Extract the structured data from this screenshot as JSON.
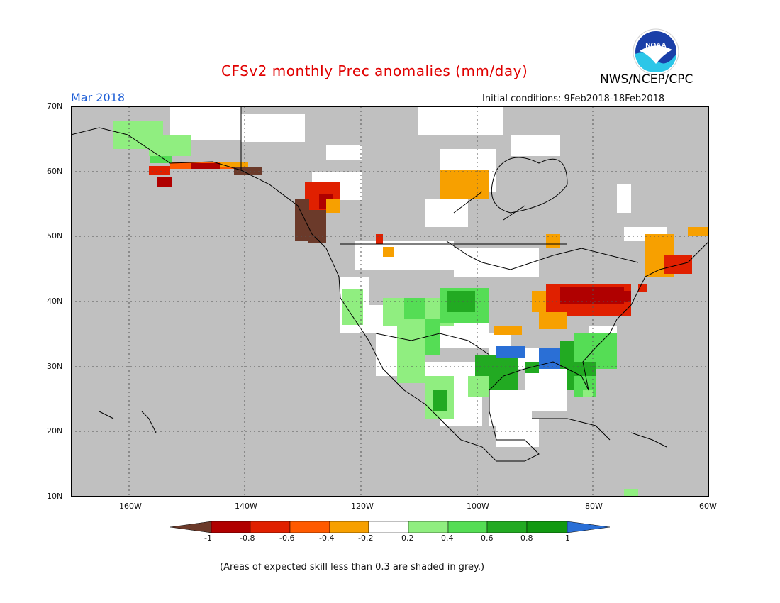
{
  "header": {
    "title": "CFSv2 monthly Prec anomalies (mm/day)",
    "agency": "NWS/NCEP/CPC",
    "valid_month": "Mar 2018",
    "initial_conditions": "Initial conditions: 9Feb2018-18Feb2018",
    "logo_text": "NOAA"
  },
  "map": {
    "lat_labels": [
      "70N",
      "60N",
      "50N",
      "40N",
      "30N",
      "20N",
      "10N"
    ],
    "lon_labels": [
      "160W",
      "140W",
      "120W",
      "100W",
      "80W",
      "60W"
    ],
    "background_color": "#c0c0c0",
    "land_outline_color": "#000000"
  },
  "legend": {
    "tick_labels": [
      "-1",
      "-0.8",
      "-0.6",
      "-0.4",
      "-0.2",
      "0.2",
      "0.4",
      "0.6",
      "0.8",
      "1"
    ],
    "colors": [
      "#6b3a2a",
      "#b00000",
      "#e02000",
      "#ff5a00",
      "#f7a000",
      "#ffffff",
      "#90ee80",
      "#55dd55",
      "#22aa22",
      "#119911",
      "#2a6fd6"
    ]
  },
  "footnote": "(Areas of expected skill less than 0.3 are shaded in grey.)"
}
